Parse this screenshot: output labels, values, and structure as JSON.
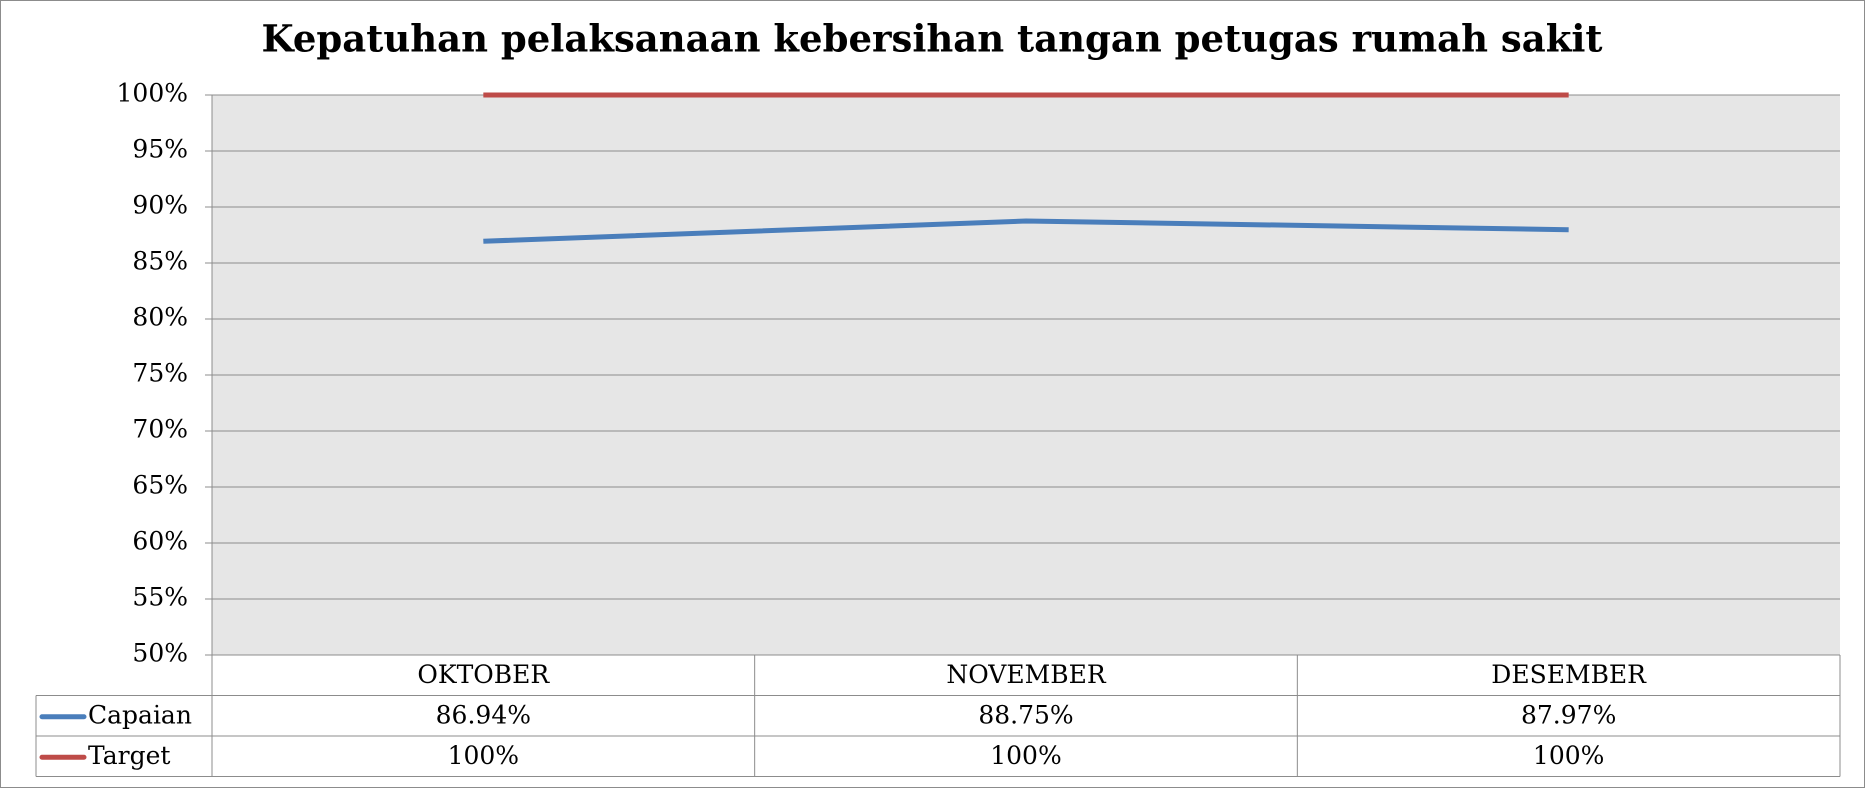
{
  "chart_data": {
    "type": "line",
    "title": "Kepatuhan pelaksanaan kebersihan tangan petugas rumah sakit",
    "categories": [
      "OKTOBER",
      "NOVEMBER",
      "DESEMBER"
    ],
    "series": [
      {
        "name": "Capaian",
        "color": "#4a7ebb",
        "values": [
          86.94,
          88.75,
          87.97
        ],
        "value_labels": [
          "86.94%",
          "88.75%",
          "87.97%"
        ]
      },
      {
        "name": "Target",
        "color": "#be4b48",
        "values": [
          100,
          100,
          100
        ],
        "value_labels": [
          "100%",
          "100%",
          "100%"
        ]
      }
    ],
    "ylim": [
      50,
      100
    ],
    "yticks": [
      {
        "value": 50,
        "label": "50%"
      },
      {
        "value": 55,
        "label": "55%"
      },
      {
        "value": 60,
        "label": "60%"
      },
      {
        "value": 65,
        "label": "65%"
      },
      {
        "value": 70,
        "label": "70%"
      },
      {
        "value": 75,
        "label": "75%"
      },
      {
        "value": 80,
        "label": "80%"
      },
      {
        "value": 85,
        "label": "85%"
      },
      {
        "value": 90,
        "label": "90%"
      },
      {
        "value": 95,
        "label": "95%"
      },
      {
        "value": 100,
        "label": "100%"
      }
    ],
    "grid": true,
    "data_table": true
  }
}
